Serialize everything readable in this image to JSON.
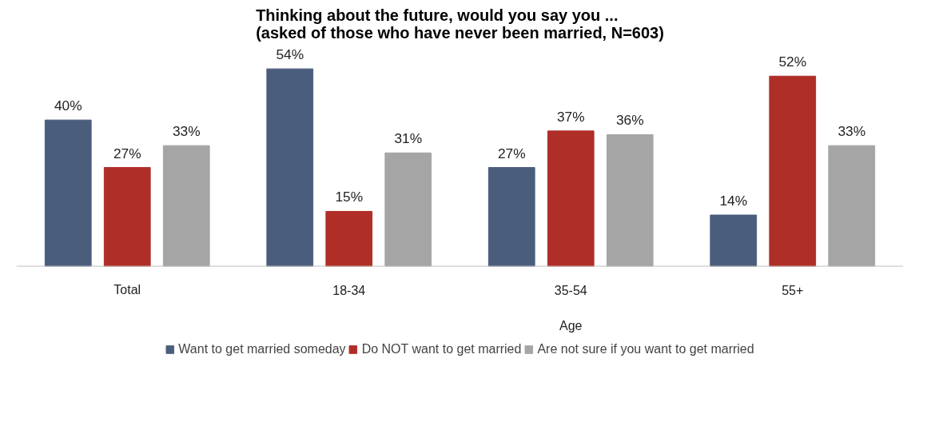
{
  "chart_data": {
    "type": "bar",
    "title": "Thinking about the future, would you say you ... (asked of those who have never been married, N=603)",
    "categories": [
      "Total",
      "18-34",
      "35-54",
      "55+"
    ],
    "series": [
      {
        "name": "Want to get married someday",
        "color": "#4a5d7c",
        "values": [
          40,
          54,
          27,
          14
        ],
        "value_labels": [
          "40%",
          "54%",
          "27%",
          "14%"
        ]
      },
      {
        "name": "Do NOT want to get married",
        "color": "#b02e28",
        "values": [
          27,
          15,
          37,
          52
        ],
        "value_labels": [
          "27%",
          "15%",
          "37%",
          "52%"
        ]
      },
      {
        "name": "Are not sure if you want to get married",
        "color": "#a5a5a5",
        "values": [
          33,
          31,
          36,
          33
        ],
        "value_labels": [
          "33%",
          "31%",
          "36%",
          "33%"
        ]
      }
    ],
    "annotations": [
      "Age"
    ],
    "data_labels": true,
    "legend": "bottom",
    "grid": false
  }
}
